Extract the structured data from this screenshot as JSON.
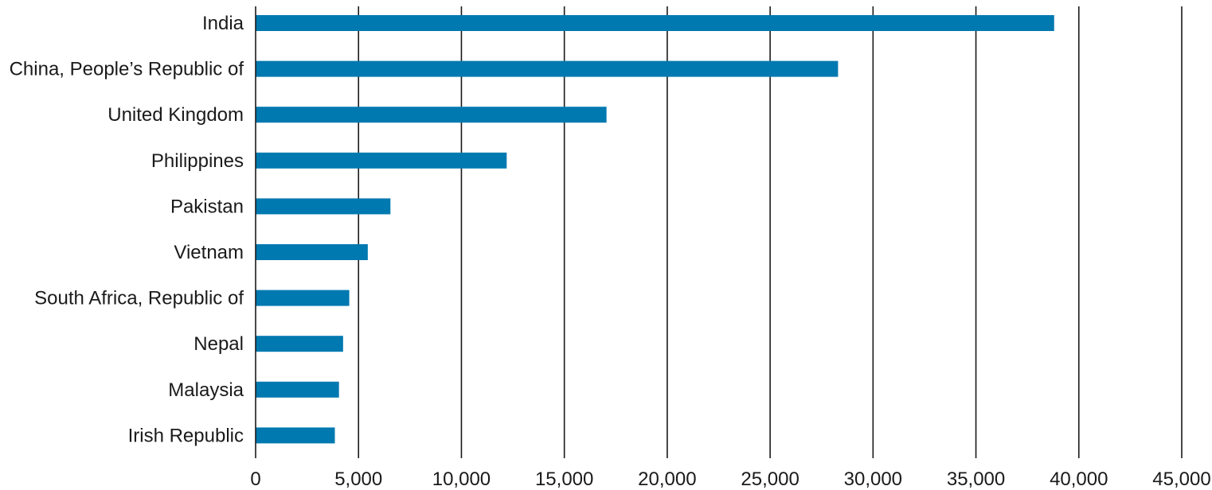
{
  "chart_data": {
    "type": "bar",
    "orientation": "horizontal",
    "title": "",
    "xlabel": "",
    "ylabel": "",
    "categories": [
      "India",
      "China, People’s Republic of",
      "United Kingdom",
      "Philippines",
      "Pakistan",
      "Vietnam",
      "South Africa, Republic of",
      "Nepal",
      "Malaysia",
      "Irish Republic"
    ],
    "values": [
      38800,
      28300,
      17050,
      12200,
      6550,
      5450,
      4550,
      4250,
      4050,
      3850
    ],
    "xlim": [
      0,
      45000
    ],
    "xticks": [
      0,
      5000,
      10000,
      15000,
      20000,
      25000,
      30000,
      35000,
      40000,
      45000
    ],
    "xtick_labels": [
      "0",
      "5,000",
      "10,000",
      "15,000",
      "20,000",
      "25,000",
      "30,000",
      "35,000",
      "40,000",
      "45,000"
    ],
    "grid": "vertical",
    "legend": "none",
    "bar_color": "#0079b0"
  }
}
